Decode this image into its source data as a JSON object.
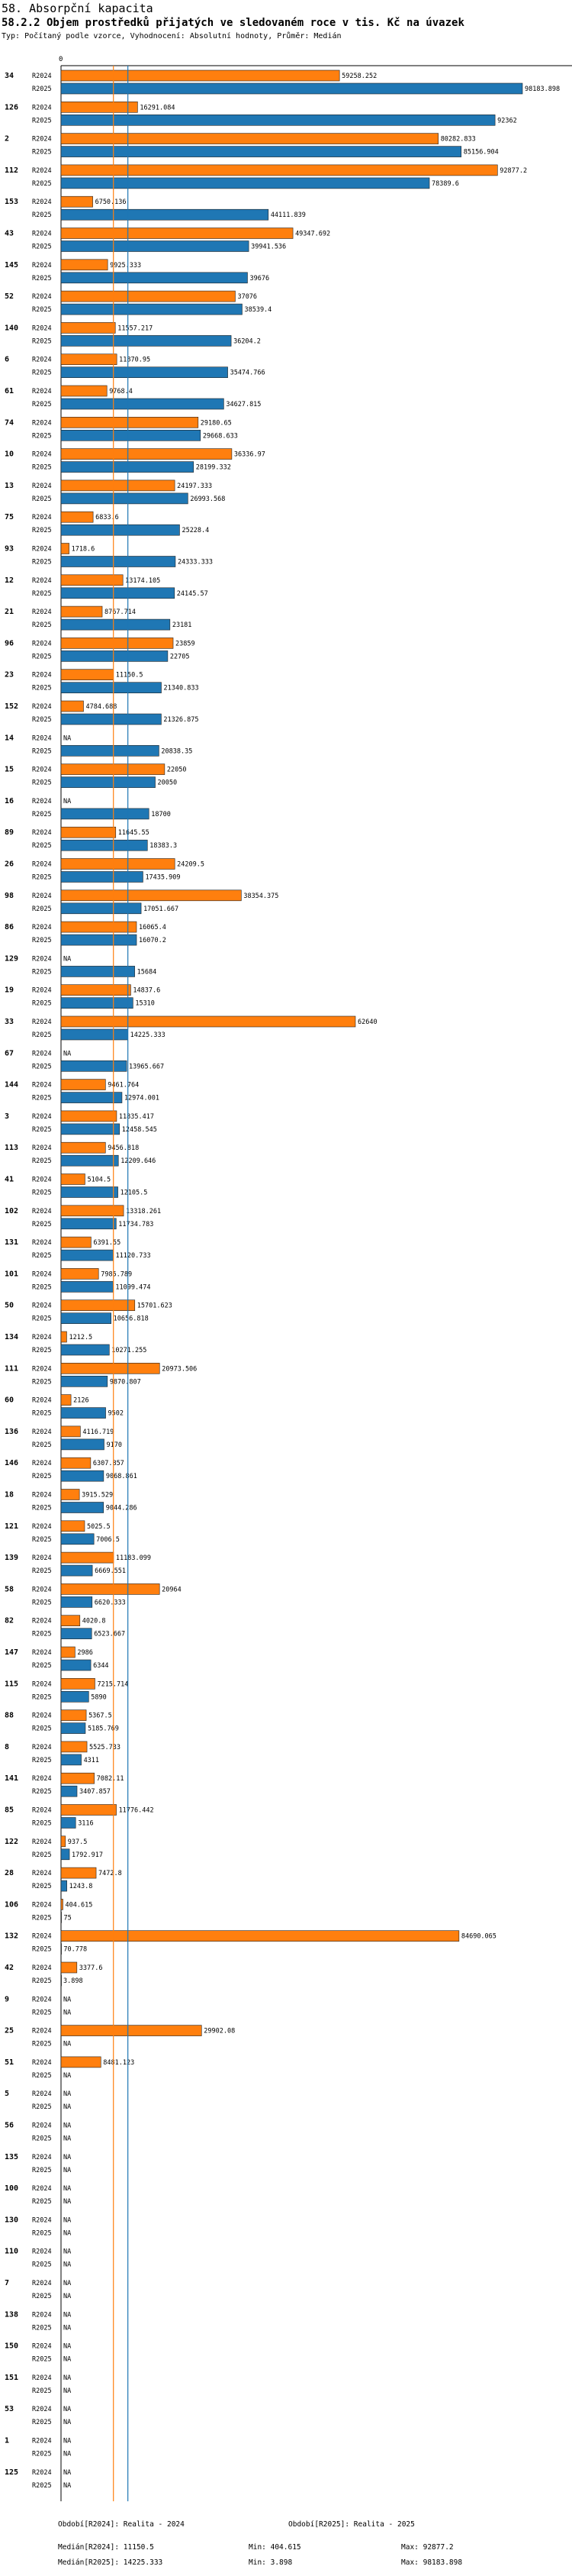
{
  "header": {
    "title": "58. Absorpční kapacita",
    "subtitle": "58.2.2 Objem prostředků přijatých ve sledovaném roce v tis. Kč na úvazek",
    "type_line": "Typ: Počítaný podle vzorce, Vyhodnocení: Absolutní hodnoty, Průměr: Medián"
  },
  "colors": {
    "r2024": "#ff7f0e",
    "r2025": "#1f77b4",
    "median_2024": "#ff7f0e",
    "median_2025": "#1f77b4"
  },
  "footer": {
    "period_2024": "Období[R2024]: Realita - 2024",
    "period_2025": "Období[R2025]: Realita - 2025",
    "median_2024": "Medián[R2024]: 11150.5",
    "median_2025": "Medián[R2025]: 14225.333",
    "min_2024": "Min: 404.615",
    "min_2025": "Min: 3.898",
    "max_2024": "Max: 92877.2",
    "max_2025": "Max: 98183.898"
  },
  "chart_data": {
    "type": "bar",
    "orientation": "horizontal",
    "x_tick_labels": [
      "0"
    ],
    "xlim": [
      0,
      98183.898
    ],
    "grid": false,
    "median_lines": {
      "R2024": 11150.5,
      "R2025": 14225.333
    },
    "series_labels": [
      "R2024",
      "R2025"
    ],
    "categories": [
      {
        "id": "34",
        "r2024": 59258.252,
        "l2024": "59258.252",
        "r2025": 98183.898,
        "l2025": "98183.898"
      },
      {
        "id": "126",
        "r2024": 16291.084,
        "l2024": "16291.084",
        "r2025": 92362,
        "l2025": "92362"
      },
      {
        "id": "2",
        "r2024": 80282.833,
        "l2024": "80282.833",
        "r2025": 85156.904,
        "l2025": "85156.904"
      },
      {
        "id": "112",
        "r2024": 92877.2,
        "l2024": "92877.2",
        "r2025": 78389.6,
        "l2025": "78389.6"
      },
      {
        "id": "153",
        "r2024": 6750.136,
        "l2024": "6750.136",
        "r2025": 44111.839,
        "l2025": "44111.839"
      },
      {
        "id": "43",
        "r2024": 49347.692,
        "l2024": "49347.692",
        "r2025": 39941.536,
        "l2025": "39941.536"
      },
      {
        "id": "145",
        "r2024": 9925.333,
        "l2024": "9925.333",
        "r2025": 39676,
        "l2025": "39676"
      },
      {
        "id": "52",
        "r2024": 37076,
        "l2024": "37076",
        "r2025": 38539.4,
        "l2025": "38539.4"
      },
      {
        "id": "140",
        "r2024": 11557.217,
        "l2024": "11557.217",
        "r2025": 36204.2,
        "l2025": "36204.2"
      },
      {
        "id": "6",
        "r2024": 11870.95,
        "l2024": "11870.95",
        "r2025": 35474.766,
        "l2025": "35474.766"
      },
      {
        "id": "61",
        "r2024": 9768.4,
        "l2024": "9768.4",
        "r2025": 34627.815,
        "l2025": "34627.815"
      },
      {
        "id": "74",
        "r2024": 29180.65,
        "l2024": "29180.65",
        "r2025": 29668.633,
        "l2025": "29668.633"
      },
      {
        "id": "10",
        "r2024": 36336.97,
        "l2024": "36336.97",
        "r2025": 28199.332,
        "l2025": "28199.332"
      },
      {
        "id": "13",
        "r2024": 24197.333,
        "l2024": "24197.333",
        "r2025": 26993.568,
        "l2025": "26993.568"
      },
      {
        "id": "75",
        "r2024": 6833.6,
        "l2024": "6833.6",
        "r2025": 25228.4,
        "l2025": "25228.4"
      },
      {
        "id": "93",
        "r2024": 1718.6,
        "l2024": "1718.6",
        "r2025": 24333.333,
        "l2025": "24333.333"
      },
      {
        "id": "12",
        "r2024": 13174.105,
        "l2024": "13174.105",
        "r2025": 24145.57,
        "l2025": "24145.57"
      },
      {
        "id": "21",
        "r2024": 8767.714,
        "l2024": "8767.714",
        "r2025": 23181,
        "l2025": "23181"
      },
      {
        "id": "96",
        "r2024": 23859,
        "l2024": "23859",
        "r2025": 22705,
        "l2025": "22705"
      },
      {
        "id": "23",
        "r2024": 11150.5,
        "l2024": "11150.5",
        "r2025": 21340.833,
        "l2025": "21340.833"
      },
      {
        "id": "152",
        "r2024": 4784.688,
        "l2024": "4784.688",
        "r2025": 21326.875,
        "l2025": "21326.875"
      },
      {
        "id": "14",
        "r2024": null,
        "l2024": "NA",
        "r2025": 20838.35,
        "l2025": "20838.35"
      },
      {
        "id": "15",
        "r2024": 22050,
        "l2024": "22050",
        "r2025": 20050,
        "l2025": "20050"
      },
      {
        "id": "16",
        "r2024": null,
        "l2024": "NA",
        "r2025": 18700,
        "l2025": "18700"
      },
      {
        "id": "89",
        "r2024": 11645.55,
        "l2024": "11645.55",
        "r2025": 18383.3,
        "l2025": "18383.3"
      },
      {
        "id": "26",
        "r2024": 24209.5,
        "l2024": "24209.5",
        "r2025": 17435.909,
        "l2025": "17435.909"
      },
      {
        "id": "98",
        "r2024": 38354.375,
        "l2024": "38354.375",
        "r2025": 17051.667,
        "l2025": "17051.667"
      },
      {
        "id": "86",
        "r2024": 16065.4,
        "l2024": "16065.4",
        "r2025": 16070.2,
        "l2025": "16070.2"
      },
      {
        "id": "129",
        "r2024": null,
        "l2024": "NA",
        "r2025": 15684,
        "l2025": "15684"
      },
      {
        "id": "19",
        "r2024": 14837.6,
        "l2024": "14837.6",
        "r2025": 15310,
        "l2025": "15310"
      },
      {
        "id": "33",
        "r2024": 62640,
        "l2024": "62640",
        "r2025": 14225.333,
        "l2025": "14225.333"
      },
      {
        "id": "67",
        "r2024": null,
        "l2024": "NA",
        "r2025": 13965.667,
        "l2025": "13965.667"
      },
      {
        "id": "144",
        "r2024": 9461.764,
        "l2024": "9461.764",
        "r2025": 12974.001,
        "l2025": "12974.001"
      },
      {
        "id": "3",
        "r2024": 11835.417,
        "l2024": "11835.417",
        "r2025": 12458.545,
        "l2025": "12458.545"
      },
      {
        "id": "113",
        "r2024": 9456.818,
        "l2024": "9456.818",
        "r2025": 12209.646,
        "l2025": "12209.646"
      },
      {
        "id": "41",
        "r2024": 5104.5,
        "l2024": "5104.5",
        "r2025": 12105.5,
        "l2025": "12105.5"
      },
      {
        "id": "102",
        "r2024": 13318.261,
        "l2024": "13318.261",
        "r2025": 11734.783,
        "l2025": "11734.783"
      },
      {
        "id": "131",
        "r2024": 6391.55,
        "l2024": "6391.55",
        "r2025": 11120.733,
        "l2025": "11120.733"
      },
      {
        "id": "101",
        "r2024": 7985.789,
        "l2024": "7985.789",
        "r2025": 11099.474,
        "l2025": "11099.474"
      },
      {
        "id": "50",
        "r2024": 15701.623,
        "l2024": "15701.623",
        "r2025": 10656.818,
        "l2025": "10656.818"
      },
      {
        "id": "134",
        "r2024": 1212.5,
        "l2024": "1212.5",
        "r2025": 10271.255,
        "l2025": "10271.255"
      },
      {
        "id": "111",
        "r2024": 20973.506,
        "l2024": "20973.506",
        "r2025": 9870.807,
        "l2025": "9870.807"
      },
      {
        "id": "60",
        "r2024": 2126,
        "l2024": "2126",
        "r2025": 9502,
        "l2025": "9502"
      },
      {
        "id": "136",
        "r2024": 4116.719,
        "l2024": "4116.719",
        "r2025": 9170,
        "l2025": "9170"
      },
      {
        "id": "146",
        "r2024": 6307.857,
        "l2024": "6307.857",
        "r2025": 9068.861,
        "l2025": "9068.861"
      },
      {
        "id": "18",
        "r2024": 3915.529,
        "l2024": "3915.529",
        "r2025": 9044.286,
        "l2025": "9044.286"
      },
      {
        "id": "121",
        "r2024": 5025.5,
        "l2024": "5025.5",
        "r2025": 7006.5,
        "l2025": "7006.5"
      },
      {
        "id": "139",
        "r2024": 11183.099,
        "l2024": "11183.099",
        "r2025": 6669.551,
        "l2025": "6669.551"
      },
      {
        "id": "58",
        "r2024": 20964,
        "l2024": "20964",
        "r2025": 6620.333,
        "l2025": "6620.333"
      },
      {
        "id": "82",
        "r2024": 4020.8,
        "l2024": "4020.8",
        "r2025": 6523.667,
        "l2025": "6523.667"
      },
      {
        "id": "147",
        "r2024": 2986,
        "l2024": "2986",
        "r2025": 6344,
        "l2025": "6344"
      },
      {
        "id": "115",
        "r2024": 7215.714,
        "l2024": "7215.714",
        "r2025": 5890,
        "l2025": "5890"
      },
      {
        "id": "88",
        "r2024": 5367.5,
        "l2024": "5367.5",
        "r2025": 5185.769,
        "l2025": "5185.769"
      },
      {
        "id": "8",
        "r2024": 5525.733,
        "l2024": "5525.733",
        "r2025": 4311,
        "l2025": "4311"
      },
      {
        "id": "141",
        "r2024": 7082.11,
        "l2024": "7082.11",
        "r2025": 3407.857,
        "l2025": "3407.857"
      },
      {
        "id": "85",
        "r2024": 11776.442,
        "l2024": "11776.442",
        "r2025": 3116,
        "l2025": "3116"
      },
      {
        "id": "122",
        "r2024": 937.5,
        "l2024": "937.5",
        "r2025": 1792.917,
        "l2025": "1792.917"
      },
      {
        "id": "28",
        "r2024": 7472.8,
        "l2024": "7472.8",
        "r2025": 1243.8,
        "l2025": "1243.8"
      },
      {
        "id": "106",
        "r2024": 404.615,
        "l2024": "404.615",
        "r2025": 75,
        "l2025": "75"
      },
      {
        "id": "132",
        "r2024": 84690.065,
        "l2024": "84690.065",
        "r2025": 70.778,
        "l2025": "70.778"
      },
      {
        "id": "42",
        "r2024": 3377.6,
        "l2024": "3377.6",
        "r2025": 3.898,
        "l2025": "3.898"
      },
      {
        "id": "9",
        "r2024": null,
        "l2024": "NA",
        "r2025": null,
        "l2025": "NA"
      },
      {
        "id": "25",
        "r2024": 29902.08,
        "l2024": "29902.08",
        "r2025": null,
        "l2025": "NA"
      },
      {
        "id": "51",
        "r2024": 8481.123,
        "l2024": "8481.123",
        "r2025": null,
        "l2025": "NA"
      },
      {
        "id": "5",
        "r2024": null,
        "l2024": "NA",
        "r2025": null,
        "l2025": "NA"
      },
      {
        "id": "56",
        "r2024": null,
        "l2024": "NA",
        "r2025": null,
        "l2025": "NA"
      },
      {
        "id": "135",
        "r2024": null,
        "l2024": "NA",
        "r2025": null,
        "l2025": "NA"
      },
      {
        "id": "100",
        "r2024": null,
        "l2024": "NA",
        "r2025": null,
        "l2025": "NA"
      },
      {
        "id": "130",
        "r2024": null,
        "l2024": "NA",
        "r2025": null,
        "l2025": "NA"
      },
      {
        "id": "110",
        "r2024": null,
        "l2024": "NA",
        "r2025": null,
        "l2025": "NA"
      },
      {
        "id": "7",
        "r2024": null,
        "l2024": "NA",
        "r2025": null,
        "l2025": "NA"
      },
      {
        "id": "138",
        "r2024": null,
        "l2024": "NA",
        "r2025": null,
        "l2025": "NA"
      },
      {
        "id": "150",
        "r2024": null,
        "l2024": "NA",
        "r2025": null,
        "l2025": "NA"
      },
      {
        "id": "151",
        "r2024": null,
        "l2024": "NA",
        "r2025": null,
        "l2025": "NA"
      },
      {
        "id": "53",
        "r2024": null,
        "l2024": "NA",
        "r2025": null,
        "l2025": "NA"
      },
      {
        "id": "1",
        "r2024": null,
        "l2024": "NA",
        "r2025": null,
        "l2025": "NA"
      },
      {
        "id": "125",
        "r2024": null,
        "l2024": "NA",
        "r2025": null,
        "l2025": "NA"
      }
    ]
  }
}
